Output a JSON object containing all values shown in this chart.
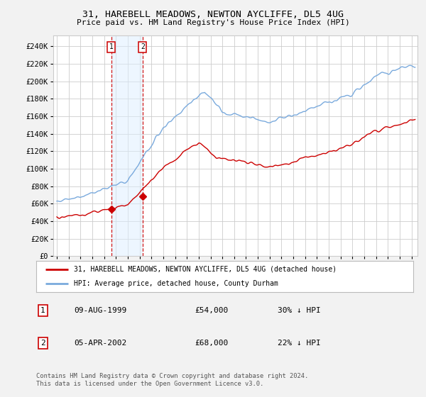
{
  "title": "31, HAREBELL MEADOWS, NEWTON AYCLIFFE, DL5 4UG",
  "subtitle": "Price paid vs. HM Land Registry's House Price Index (HPI)",
  "ytick_values": [
    0,
    20000,
    40000,
    60000,
    80000,
    100000,
    120000,
    140000,
    160000,
    180000,
    200000,
    220000,
    240000
  ],
  "ylim": [
    0,
    252000
  ],
  "xlim_start": 1994.7,
  "xlim_end": 2025.5,
  "sale1": {
    "date_num": 1999.6,
    "price": 54000,
    "label": "1",
    "date_str": "09-AUG-1999",
    "price_str": "£54,000",
    "hpi_str": "30% ↓ HPI"
  },
  "sale2": {
    "date_num": 2002.25,
    "price": 68000,
    "label": "2",
    "date_str": "05-APR-2002",
    "price_str": "£68,000",
    "hpi_str": "22% ↓ HPI"
  },
  "legend_line1": "31, HAREBELL MEADOWS, NEWTON AYCLIFFE, DL5 4UG (detached house)",
  "legend_line2": "HPI: Average price, detached house, County Durham",
  "footnote": "Contains HM Land Registry data © Crown copyright and database right 2024.\nThis data is licensed under the Open Government Licence v3.0.",
  "hpi_color": "#7aaadd",
  "price_color": "#cc0000",
  "background_color": "#f2f2f2",
  "plot_bg_color": "#ffffff",
  "grid_color": "#cccccc",
  "shade_color": "#ddeeff"
}
